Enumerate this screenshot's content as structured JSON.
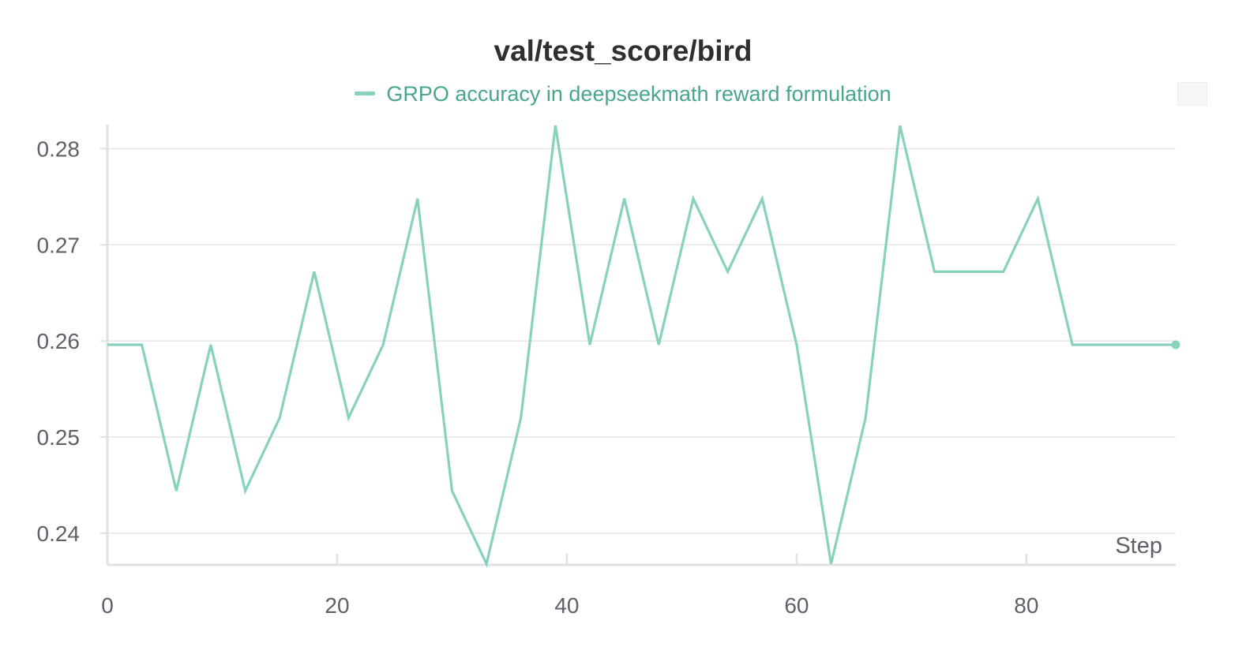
{
  "chart_data": {
    "type": "line",
    "title": "val/test_score/bird",
    "xlabel": "Step",
    "ylabel": "",
    "xlim": [
      0,
      93
    ],
    "ylim": [
      0.2367,
      0.2825
    ],
    "xticks": [
      0,
      20,
      40,
      60,
      80
    ],
    "yticks": [
      0.24,
      0.25,
      0.26,
      0.27,
      0.28
    ],
    "xtick_labels": [
      "0",
      "20",
      "40",
      "60",
      "80"
    ],
    "ytick_labels": [
      "0.24",
      "0.25",
      "0.26",
      "0.27",
      "0.28"
    ],
    "grid": true,
    "legend_position": "top-center",
    "series": [
      {
        "name": "GRPO accuracy in deepseekmath reward formulation",
        "color": "#88d1bf",
        "x": [
          0,
          3,
          6,
          9,
          12,
          15,
          18,
          21,
          24,
          27,
          30,
          33,
          36,
          39,
          42,
          45,
          48,
          51,
          54,
          57,
          60,
          63,
          66,
          69,
          72,
          75,
          78,
          81,
          84,
          87,
          90,
          93
        ],
        "y": [
          0.2596,
          0.2596,
          0.2444,
          0.2596,
          0.2444,
          0.252,
          0.2672,
          0.252,
          0.2596,
          0.2748,
          0.2444,
          0.2368,
          0.252,
          0.2824,
          0.2596,
          0.2748,
          0.2596,
          0.2748,
          0.2672,
          0.2748,
          0.2596,
          0.2368,
          0.252,
          0.2824,
          0.2672,
          0.2672,
          0.2672,
          0.2748,
          0.2596,
          0.2596,
          0.2596,
          0.2596
        ]
      }
    ]
  }
}
